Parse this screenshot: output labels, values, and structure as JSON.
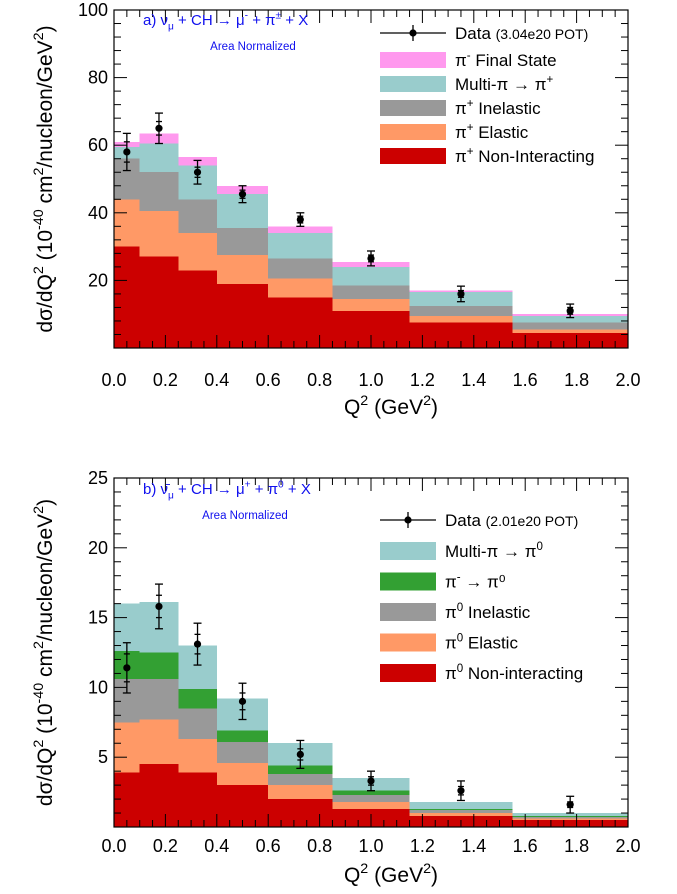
{
  "chart_data": [
    {
      "type": "bar",
      "stacked": true,
      "panel_label": "a)",
      "title_parts": [
        "ν",
        "μ",
        " + CH → μ",
        "-",
        " + π",
        "±",
        " + X"
      ],
      "subtitle": "Area Normalized",
      "title_color": "#1010ee",
      "xlabel": "Q",
      "xlabel_sup": "2",
      "xlabel_rest": " (GeV",
      "xlabel_sup2": "2",
      "xlabel_close": ")",
      "ylabel_parts": [
        "dσ/dQ",
        "2",
        " (10",
        "-40",
        " cm",
        "2",
        "/nucleon/GeV",
        "2",
        ")"
      ],
      "xlim": [
        0,
        2.0
      ],
      "ylim": [
        0,
        100
      ],
      "x_ticks": [
        "0.0",
        "0.2",
        "0.4",
        "0.6",
        "0.8",
        "1.0",
        "1.2",
        "1.4",
        "1.6",
        "1.8",
        "2.0"
      ],
      "y_ticks": [
        "20",
        "40",
        "60",
        "80",
        "100"
      ],
      "y_tick_values": [
        20,
        40,
        60,
        80,
        100
      ],
      "bin_edges": [
        0.0,
        0.1,
        0.25,
        0.4,
        0.6,
        0.85,
        1.15,
        1.55,
        2.0
      ],
      "series": [
        {
          "name": "π⁺ Non-Interacting",
          "color": "#cc0000",
          "values": [
            30,
            27,
            23,
            19,
            15,
            11,
            7.5,
            4.5
          ]
        },
        {
          "name": "π⁺ Elastic",
          "color": "#ff9966",
          "values": [
            14,
            13.5,
            11,
            8.5,
            5.5,
            3.5,
            2,
            1
          ]
        },
        {
          "name": "π⁺ Inelastic",
          "color": "#999999",
          "values": [
            12,
            11.5,
            10,
            8,
            6,
            4,
            3,
            2
          ]
        },
        {
          "name": "Multi-π → π⁺",
          "color": "#99cccc",
          "values": [
            3.5,
            8.5,
            10,
            10,
            7.5,
            5.5,
            4,
            2
          ]
        },
        {
          "name": "π⁻ Final State",
          "color": "#ff99ee",
          "values": [
            1.5,
            3,
            2.5,
            2.5,
            2,
            1.5,
            0.5,
            0.5
          ]
        }
      ],
      "data": {
        "name": "Data",
        "label_suffix": "(3.04e20 POT)",
        "x": [
          0.05,
          0.175,
          0.325,
          0.5,
          0.725,
          1.0,
          1.35,
          1.775
        ],
        "y": [
          58,
          65,
          52,
          45.5,
          38,
          26.5,
          16,
          11
        ],
        "err_outer": [
          5.5,
          4.5,
          3.5,
          2.5,
          2,
          2.2,
          2.3,
          2
        ],
        "err_inner": [
          3,
          2,
          1.5,
          1.2,
          1,
          1,
          1,
          1
        ]
      },
      "legend_entries": [
        {
          "label": "π",
          "sup": "-",
          "rest": " Final State",
          "color": "#ff99ee"
        },
        {
          "label": "Multi-π → π",
          "sup": "+",
          "rest": "",
          "color": "#99cccc"
        },
        {
          "label": "π",
          "sup": "+",
          "rest": " Inelastic",
          "color": "#999999"
        },
        {
          "label": "π",
          "sup": "+",
          "rest": " Elastic",
          "color": "#ff9966"
        },
        {
          "label": "π",
          "sup": "+",
          "rest": " Non-Interacting",
          "color": "#cc0000"
        }
      ],
      "legend_placement": "top-right",
      "grid": false
    },
    {
      "type": "bar",
      "stacked": true,
      "panel_label": "b)",
      "title_parts": [
        "ν̄",
        "μ",
        " + CH → μ",
        "+",
        " + π",
        "0",
        " + X"
      ],
      "subtitle": "Area Normalized",
      "title_color": "#1010ee",
      "xlabel": "Q",
      "xlabel_sup": "2",
      "xlabel_rest": " (GeV",
      "xlabel_sup2": "2",
      "xlabel_close": ")",
      "ylabel_parts": [
        "dσ/dQ",
        "2",
        " (10",
        "-40",
        " cm",
        "2",
        "/nucleon/GeV",
        "2",
        ")"
      ],
      "xlim": [
        0,
        2.0
      ],
      "ylim": [
        0,
        25
      ],
      "x_ticks": [
        "0.0",
        "0.2",
        "0.4",
        "0.6",
        "0.8",
        "1.0",
        "1.2",
        "1.4",
        "1.6",
        "1.8",
        "2.0"
      ],
      "y_ticks": [
        "5",
        "10",
        "15",
        "20",
        "25"
      ],
      "y_tick_values": [
        5,
        10,
        15,
        20,
        25
      ],
      "bin_edges": [
        0.0,
        0.1,
        0.25,
        0.4,
        0.6,
        0.85,
        1.15,
        1.55,
        2.0
      ],
      "series": [
        {
          "name": "π⁰ Non-interacting",
          "color": "#cc0000",
          "values": [
            3.9,
            4.5,
            3.9,
            3.0,
            2.0,
            1.3,
            0.8,
            0.5
          ]
        },
        {
          "name": "π⁰ Elastic",
          "color": "#ff9966",
          "values": [
            3.6,
            3.2,
            2.4,
            1.6,
            1.0,
            0.5,
            0.2,
            0.1
          ]
        },
        {
          "name": "π⁰ Inelastic",
          "color": "#999999",
          "values": [
            3.1,
            2.9,
            2.2,
            1.5,
            0.8,
            0.5,
            0.2,
            0.1
          ]
        },
        {
          "name": "π⁻ → π⁰",
          "color": "#33a033",
          "values": [
            2.0,
            1.9,
            1.4,
            0.8,
            0.6,
            0.3,
            0.1,
            0.1
          ]
        },
        {
          "name": "Multi-π → π⁰",
          "color": "#99cccc",
          "values": [
            3.4,
            3.6,
            3.1,
            2.3,
            1.6,
            0.9,
            0.5,
            0.2
          ]
        }
      ],
      "data": {
        "name": "Data",
        "label_suffix": "(2.01e20 POT)",
        "x": [
          0.05,
          0.175,
          0.325,
          0.5,
          0.725,
          1.0,
          1.35,
          1.775
        ],
        "y": [
          11.4,
          15.8,
          13.1,
          9.0,
          5.2,
          3.3,
          2.6,
          1.6
        ],
        "err_outer": [
          1.8,
          1.6,
          1.5,
          1.3,
          1.0,
          0.7,
          0.7,
          0.6
        ],
        "err_inner": [
          1.0,
          0.8,
          0.7,
          0.6,
          0.4,
          0.3,
          0.3,
          0.2
        ]
      },
      "legend_entries": [
        {
          "label": "Multi-π → π",
          "sup": "0",
          "rest": "",
          "color": "#99cccc"
        },
        {
          "label": "π",
          "sup": "-",
          "rest": " → π⁰",
          "color": "#33a033"
        },
        {
          "label": "π",
          "sup": "0",
          "rest": " Inelastic",
          "color": "#999999"
        },
        {
          "label": "π",
          "sup": "0",
          "rest": " Elastic",
          "color": "#ff9966"
        },
        {
          "label": "π",
          "sup": "0",
          "rest": " Non-interacting",
          "color": "#cc0000"
        }
      ],
      "legend_placement": "top-right",
      "grid": false
    }
  ]
}
